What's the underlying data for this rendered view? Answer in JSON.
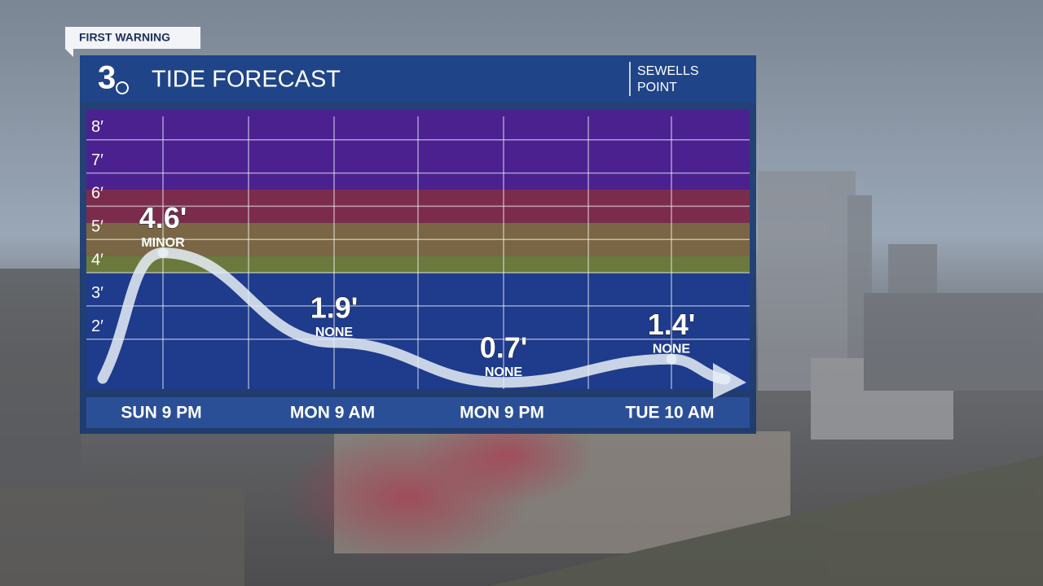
{
  "badge": "FIRST WARNING",
  "logo": "3",
  "chart_data": {
    "type": "line",
    "title": "TIDE FORECAST",
    "location": [
      "SEWELLS",
      "POINT"
    ],
    "categories": [
      "SUN 9 PM",
      "MON 9 AM",
      "MON 9 PM",
      "TUE 10 AM"
    ],
    "values": [
      4.6,
      1.9,
      0.7,
      1.4
    ],
    "value_labels": [
      "4.6'",
      "1.9'",
      "0.7'",
      "1.4'"
    ],
    "flood_labels": [
      "MINOR",
      "NONE",
      "NONE",
      "NONE"
    ],
    "ylim": [
      0.5,
      8.9
    ],
    "yticks": [
      {
        "value": 2,
        "label": "2′"
      },
      {
        "value": 3,
        "label": "3′"
      },
      {
        "value": 4,
        "label": "4′"
      },
      {
        "value": 5,
        "label": "5′"
      },
      {
        "value": 6,
        "label": "6′"
      },
      {
        "value": 7,
        "label": "7′"
      },
      {
        "value": 8,
        "label": "8′"
      }
    ],
    "zones": [
      {
        "from": 0.5,
        "to": 4,
        "color": "#1e3b8c"
      },
      {
        "from": 4,
        "to": 4.5,
        "color": "#6b7a3c"
      },
      {
        "from": 4.5,
        "to": 5.5,
        "color": "#7a6644"
      },
      {
        "from": 5.5,
        "to": 6.5,
        "color": "#7b2c4c"
      },
      {
        "from": 6.5,
        "to": 8.9,
        "color": "#4b2190"
      }
    ],
    "color": "#e8eef6",
    "grid": true
  }
}
